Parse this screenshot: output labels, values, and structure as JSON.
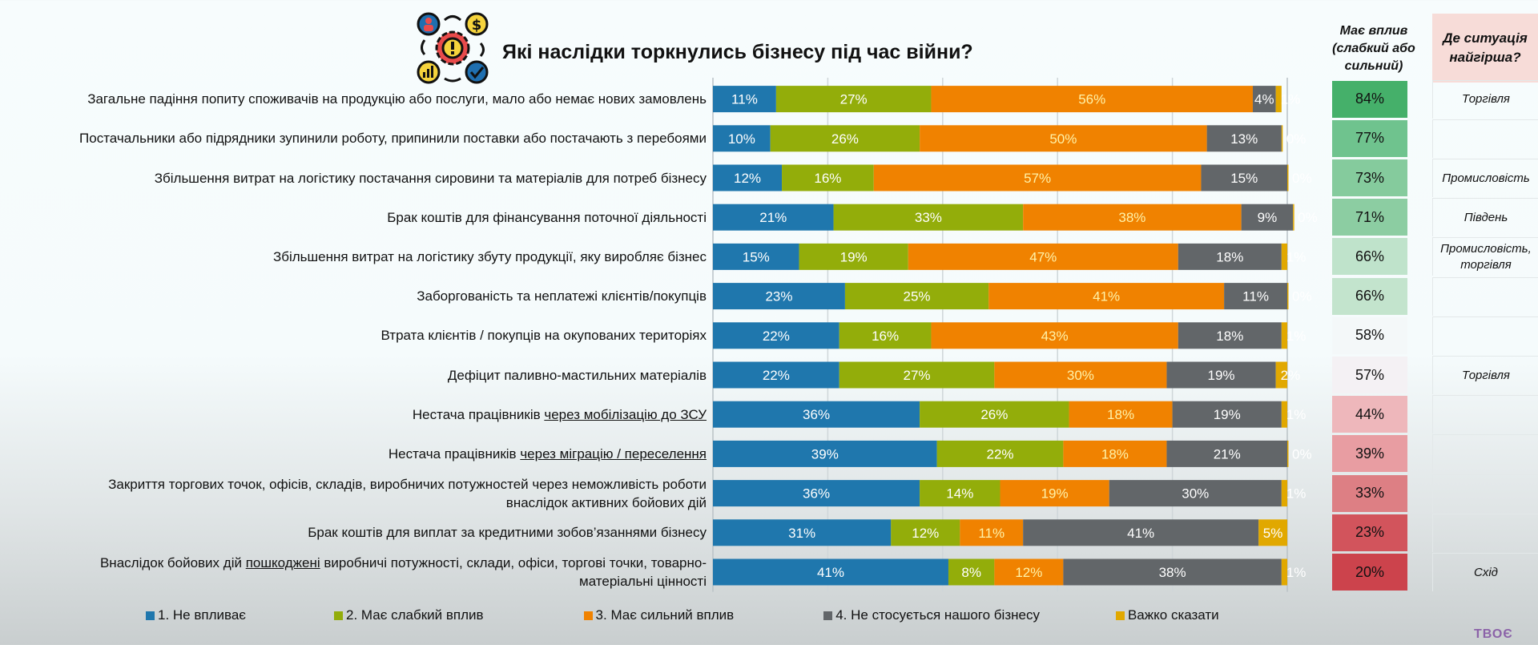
{
  "title": "Які наслідки торкнулись бізнесу під час війни?",
  "title_icon": "business-impact-gear-icon",
  "side_table": {
    "impact_header": "Має вплив (слабкий або сильний)",
    "worst_header": "Де ситуація найгірша?",
    "impact_values": [
      "84%",
      "77%",
      "73%",
      "71%",
      "66%",
      "66%",
      "58%",
      "57%",
      "44%",
      "39%",
      "33%",
      "23%",
      "20%"
    ],
    "impact_colors": [
      "#45b06a",
      "#6fc38e",
      "#85cb9d",
      "#8ccda2",
      "#bfe3cb",
      "#c3e4cd",
      "#f4f8f9",
      "#f4f1f4",
      "#eeb7bb",
      "#e89da2",
      "#dd7f84",
      "#d2545c",
      "#cc434c"
    ],
    "worst_values": [
      "Торгівля",
      "",
      "Промисловість",
      "Південь",
      "Промисловість, торгівля",
      "",
      "",
      "Торгівля",
      "",
      "",
      "",
      "",
      "Схід"
    ]
  },
  "logo_text": "ТВОЄ",
  "chart_data": {
    "type": "bar",
    "orientation": "horizontal",
    "stacked": true,
    "title": "Які наслідки торкнулись бізнесу під час війни?",
    "xlabel": "",
    "ylabel": "",
    "xlim": [
      0,
      100
    ],
    "grid": true,
    "legend_position": "bottom",
    "categories": [
      "Загальне падіння попиту споживачів на продукцію або послуги, мало або немає нових замовлень",
      "Постачальники або підрядники зупинили роботу, припинили поставки або постачають з перебоями",
      "Збільшення витрат на логістику постачання сировини та матеріалів для потреб бізнесу",
      "Брак коштів для фінансування поточної діяльності",
      "Збільшення витрат на логістику збуту продукції, яку виробляє бізнес",
      "Заборгованість та неплатежі клієнтів/покупців",
      "Втрата клієнтів / покупців на окупованих територіях",
      "Дефіцит паливно-мастильних матеріалів",
      "Нестача працівників через мобілізацію до ЗСУ",
      "Нестача працівників через міграцію / переселення",
      "Закриття торгових точок, офісів, складів, виробничих потужностей через неможливість роботи внаслідок активних бойових дій",
      "Брак коштів для виплат за кредитними зобов’язаннями бізнесу",
      "Внаслідок бойових дій пошкоджені виробничі потужності, склади, офіси, торгові точки, товарно-матеріальні цінності"
    ],
    "category_labels": [
      {
        "lines": [
          [
            "Загальне падіння попиту споживачів на продукцію або послуги, мало або немає нових замовлень"
          ]
        ]
      },
      {
        "lines": [
          [
            "Постачальники або підрядники зупинили роботу, припинили поставки або постачають з перебоями"
          ]
        ]
      },
      {
        "lines": [
          [
            "Збільшення витрат на логістику постачання сировини та матеріалів для потреб бізнесу"
          ]
        ]
      },
      {
        "lines": [
          [
            "Брак коштів для фінансування поточної діяльності"
          ]
        ]
      },
      {
        "lines": [
          [
            "Збільшення витрат на логістику збуту продукції, яку виробляє бізнес"
          ]
        ]
      },
      {
        "lines": [
          [
            "Заборгованість та неплатежі клієнтів/покупців"
          ]
        ]
      },
      {
        "lines": [
          [
            "Втрата клієнтів / покупців на окупованих територіях"
          ]
        ]
      },
      {
        "lines": [
          [
            "Дефіцит паливно-мастильних матеріалів"
          ]
        ]
      },
      {
        "lines": [
          [
            "Нестача працівників ",
            "через мобілізацію до ЗСУ"
          ]
        ]
      },
      {
        "lines": [
          [
            "Нестача працівників ",
            "через міграцію / переселення"
          ]
        ]
      },
      {
        "lines": [
          [
            "Закриття торгових точок, офісів, складів, виробничих потужностей через неможливість роботи"
          ],
          [
            "внаслідок активних бойових дій"
          ]
        ]
      },
      {
        "lines": [
          [
            "Брак коштів для виплат за кредитними зобов’язаннями бізнесу"
          ]
        ]
      },
      {
        "lines": [
          [
            "Внаслідок бойових дій ",
            "пошкоджені",
            " виробничі потужності, склади, офіси, торгові точки, товарно-"
          ],
          [
            "матеріальні цінності"
          ]
        ]
      }
    ],
    "series": [
      {
        "name": "1. Не впливає",
        "color": "#1f77ad",
        "values": [
          11,
          10,
          12,
          21,
          15,
          23,
          22,
          22,
          36,
          39,
          36,
          31,
          41
        ]
      },
      {
        "name": "2. Має слабкий вплив",
        "color": "#93ad0a",
        "values": [
          27,
          26,
          16,
          33,
          19,
          25,
          16,
          27,
          26,
          22,
          14,
          12,
          8
        ]
      },
      {
        "name": "3. Має сильний вплив",
        "color": "#f08200",
        "values": [
          56,
          50,
          57,
          38,
          47,
          41,
          43,
          30,
          18,
          18,
          19,
          11,
          12
        ]
      },
      {
        "name": "4. Не стосується нашого бізнесу",
        "color": "#626669",
        "values": [
          4,
          13,
          15,
          9,
          18,
          11,
          18,
          19,
          19,
          21,
          30,
          41,
          38
        ]
      },
      {
        "name": "Важко сказати",
        "color": "#e1a800",
        "values": [
          1,
          0,
          0,
          0,
          1,
          0,
          1,
          2,
          1,
          0,
          1,
          5,
          1
        ]
      }
    ],
    "label_color_light": "#ffffff",
    "label_color_orange": "#fff2a8"
  }
}
